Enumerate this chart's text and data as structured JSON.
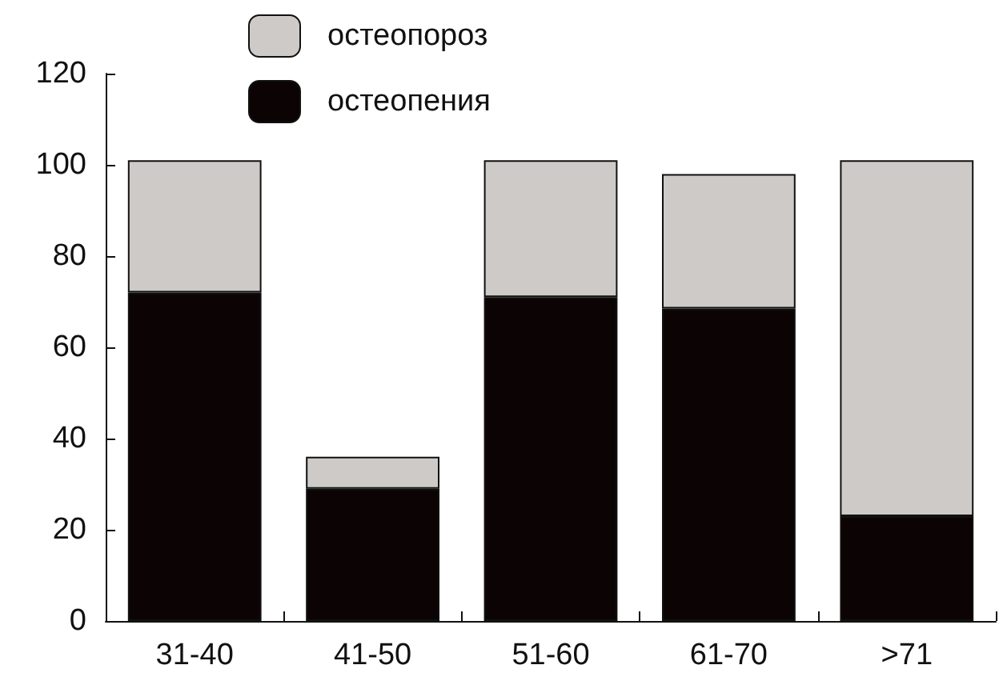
{
  "chart_data": {
    "type": "bar",
    "stacked": true,
    "categories": [
      "31-40",
      "41-50",
      "51-60",
      "61-70",
      ">71"
    ],
    "series": [
      {
        "name": "остеопения",
        "color": "#0c0404",
        "values": [
          72,
          29,
          71,
          68.5,
          23
        ]
      },
      {
        "name": "остеопороз",
        "color": "#cdcac8",
        "values": [
          29,
          7,
          30,
          29.5,
          78
        ]
      }
    ],
    "ylim": [
      0,
      120
    ],
    "yticks": [
      0,
      20,
      40,
      60,
      80,
      100,
      120
    ],
    "grid": false,
    "legend": "top"
  }
}
